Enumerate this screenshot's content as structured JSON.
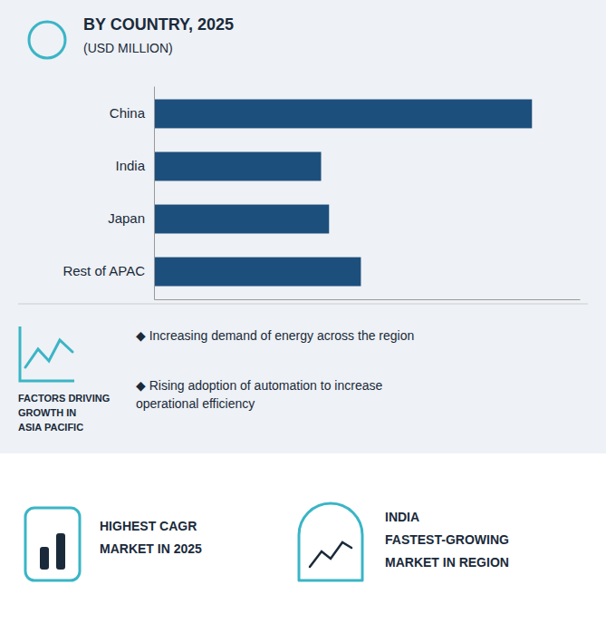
{
  "chart_data": {
    "type": "bar",
    "orientation": "horizontal",
    "title": "BY  COUNTRY, 2025",
    "subtitle": "(USD MILLION)",
    "categories": [
      "China",
      "India",
      "Japan",
      "Rest of APAC"
    ],
    "values": [
      95,
      42,
      44,
      52
    ],
    "color": "#1d4f7c",
    "xlim": [
      0,
      107
    ],
    "grid": false,
    "tick_labels": "y",
    "annotations": [
      "FACTORS DRIVING\nGROWTH IN\nASIA PACIFIC",
      "◆  Increasing demand of energy across  the region",
      "◆  Rising adoption of automation to increase\noperational efficiency",
      "HIGHEST CAGR",
      "MARKET IN 2025",
      "INDIA",
      "FASTEST-GROWING",
      "MARKET IN REGION"
    ]
  }
}
